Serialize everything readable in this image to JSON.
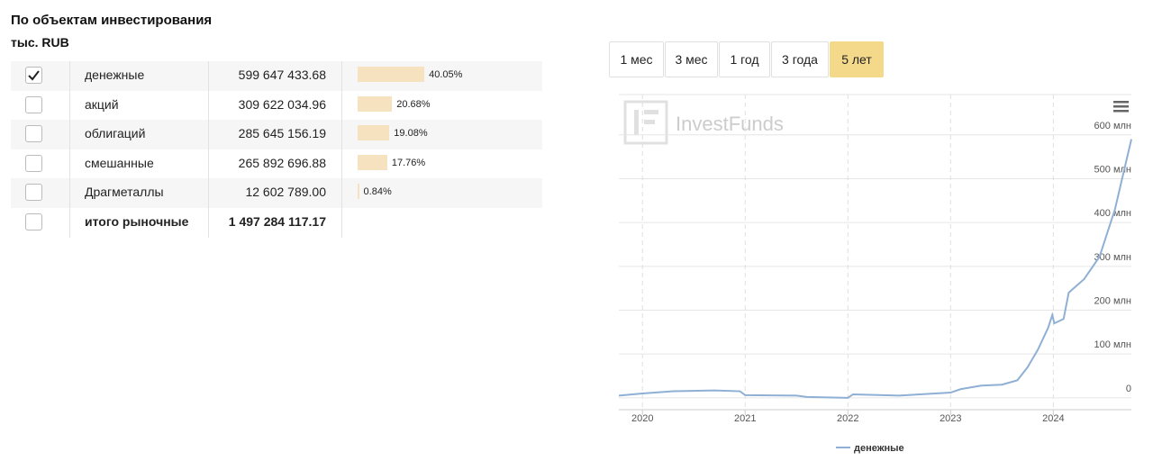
{
  "header": {
    "title": "По объектам инвестирования",
    "unit": "тыс. RUB"
  },
  "table": {
    "rows": [
      {
        "label": "денежные",
        "amount": "599 647 433.68",
        "share": 40.05,
        "share_label": "40.05%",
        "checked": true
      },
      {
        "label": "акций",
        "amount": "309 622 034.96",
        "share": 20.68,
        "share_label": "20.68%",
        "checked": false
      },
      {
        "label": "облигаций",
        "amount": "285 645 156.19",
        "share": 19.08,
        "share_label": "19.08%",
        "checked": false
      },
      {
        "label": "смешанные",
        "amount": "265 892 696.88",
        "share": 17.76,
        "share_label": "17.76%",
        "checked": false
      },
      {
        "label": "Драгметаллы",
        "amount": "12 602 789.00",
        "share": 0.84,
        "share_label": "0.84%",
        "checked": false
      },
      {
        "label": "итого рыночные",
        "amount": "1 497 284 117.17",
        "checked": false,
        "bold": true
      }
    ]
  },
  "periods": {
    "buttons": [
      "1 мес",
      "3 мес",
      "1 год",
      "3 года",
      "5 лет"
    ],
    "active": 4
  },
  "chart_data": {
    "type": "line",
    "watermark": "InvestFunds",
    "x": [
      2019.77,
      2020.0,
      2020.3,
      2020.7,
      2020.95,
      2021.0,
      2021.5,
      2021.6,
      2022.0,
      2022.05,
      2022.5,
      2022.7,
      2023.0,
      2023.1,
      2023.3,
      2023.5,
      2023.65,
      2023.75,
      2023.85,
      2023.95,
      2023.99,
      2024.01,
      2024.1,
      2024.15,
      2024.3,
      2024.45,
      2024.6,
      2024.76
    ],
    "series": [
      {
        "name": "денежные",
        "color": "#8fb0d4",
        "values": [
          5,
          10,
          15,
          17,
          15,
          6,
          5,
          2,
          0,
          8,
          5,
          8,
          12,
          20,
          28,
          30,
          40,
          70,
          110,
          160,
          189,
          170,
          180,
          240,
          271,
          322,
          430,
          590
        ]
      }
    ],
    "xlim": [
      2019.77,
      2024.76
    ],
    "xticks": [
      2020,
      2021,
      2022,
      2023,
      2024
    ],
    "ylim": [
      -27,
      692
    ],
    "yticks": [
      {
        "value": 0,
        "label": "0"
      },
      {
        "value": 100,
        "label": "100 млн"
      },
      {
        "value": 200,
        "label": "200 млн"
      },
      {
        "value": 300,
        "label": "300 млн"
      },
      {
        "value": 400,
        "label": "400 млн"
      },
      {
        "value": 500,
        "label": "500 млн"
      },
      {
        "value": 600,
        "label": "600 млн"
      }
    ],
    "grid": true,
    "legend": "bottom"
  }
}
